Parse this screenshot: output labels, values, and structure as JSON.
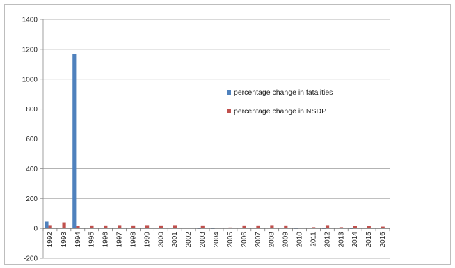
{
  "chart_data": {
    "type": "bar",
    "categories": [
      "1992",
      "1993",
      "1994",
      "1995",
      "1996",
      "1997",
      "1998",
      "1999",
      "2000",
      "2001",
      "2002",
      "2003",
      "2004",
      "2005",
      "2006",
      "2007",
      "2008",
      "2009",
      "2010",
      "2011",
      "2012",
      "2013",
      "2014",
      "2015",
      "2016"
    ],
    "series": [
      {
        "name": "percentage change in fatalities",
        "color": "#4f81bd",
        "values": [
          45,
          5,
          1170,
          3,
          2,
          3,
          2,
          4,
          3,
          2,
          2,
          -3,
          -2,
          2,
          5,
          3,
          3,
          4,
          -2,
          5,
          -3,
          2,
          -3,
          2,
          4
        ]
      },
      {
        "name": "percentage change in NSDP",
        "color": "#c0504d",
        "values": [
          22,
          40,
          18,
          20,
          20,
          22,
          20,
          22,
          20,
          22,
          5,
          20,
          3,
          6,
          20,
          20,
          22,
          20,
          4,
          8,
          22,
          8,
          16,
          16,
          12
        ]
      }
    ],
    "ylim": [
      -200,
      1400
    ],
    "yticks": [
      -200,
      0,
      200,
      400,
      600,
      800,
      1000,
      1200,
      1400
    ],
    "grid": true,
    "legend_position": "right"
  }
}
